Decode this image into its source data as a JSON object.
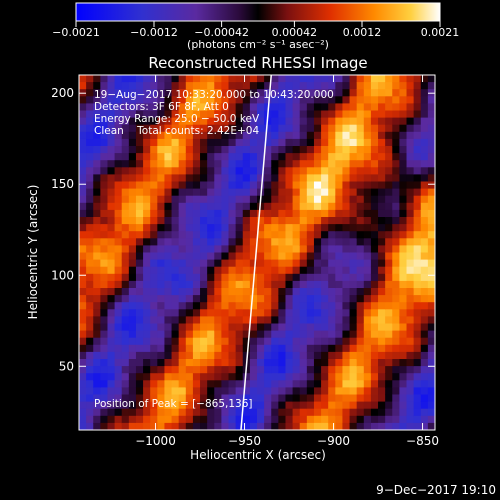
{
  "chart_data": {
    "type": "heatmap",
    "title": "Reconstructed RHESSI Image",
    "xlabel": "Heliocentric X (arcsec)",
    "ylabel": "Heliocentric Y (arcsec)",
    "xlim": [
      -1043,
      -843
    ],
    "ylim": [
      15,
      210
    ],
    "x_ticks": [
      -1000,
      -950,
      -900,
      -850
    ],
    "x_tick_labels": [
      "−1000",
      "−950",
      "−900",
      "−850"
    ],
    "y_ticks": [
      50,
      100,
      150,
      200
    ],
    "y_tick_labels": [
      "50",
      "100",
      "150",
      "200"
    ],
    "colorbar": {
      "min": -0.0021,
      "max": 0.0021,
      "ticks": [
        -0.0021,
        -0.0012,
        -0.00042,
        0.00042,
        0.0012,
        0.0021
      ],
      "tick_labels": [
        "−0.0021",
        "−0.0012",
        "−0.00042",
        "0.00042",
        "0.0012",
        "0.0021"
      ],
      "unit_label": "(photons cm⁻² s⁻¹ asec⁻²)"
    },
    "info_lines": [
      "19−Aug−2017 10:33:20.000 to 10:43:20.000",
      "Detectors: 3F 6F 8F, Att 0",
      "Energy Range: 25.0 − 50.0 keV",
      "Clean    Total counts: 2.42E+04"
    ],
    "peak_label": "Position of Peak = [−865,136]",
    "peak_position": [
      -865,
      136
    ],
    "limb_line": {
      "x": [
        -952,
        -935
      ],
      "y": [
        15,
        210
      ]
    },
    "timestamp": "9−Dec−2017 19:10"
  }
}
